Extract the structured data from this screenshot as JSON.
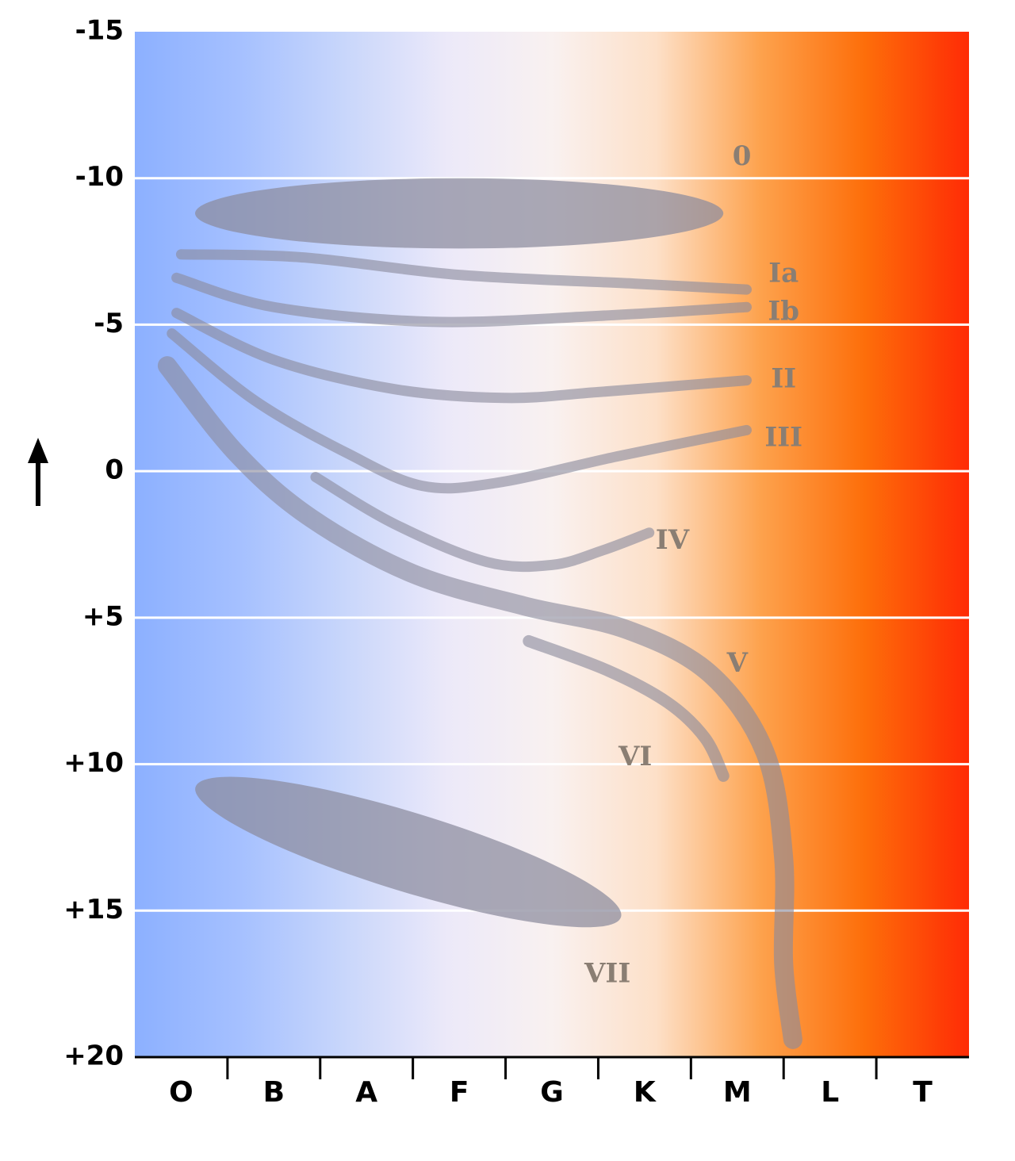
{
  "chart_data": {
    "type": "scatter",
    "title": "",
    "xlabel": "",
    "ylabel": "",
    "y_axis_arrow": "up-arrow-icon",
    "x_categories": [
      "O",
      "B",
      "A",
      "F",
      "G",
      "K",
      "M",
      "L",
      "T"
    ],
    "y_ticks": [
      -15,
      -10,
      -5,
      0,
      5,
      10,
      15,
      20
    ],
    "y_tick_labels": [
      "-15",
      "-10",
      "-5",
      "0",
      "+5",
      "+10",
      "+15",
      "+20"
    ],
    "ylim": [
      -15,
      20
    ],
    "y_inverted": true,
    "grid": "horizontal",
    "background_gradient": [
      "#8cb0ff",
      "#a5c0ff",
      "#c8d6fb",
      "#ece9f9",
      "#f9f1f0",
      "#fde0c8",
      "#fda24d",
      "#fd6e0a",
      "#ff2b05"
    ],
    "region_color": "#8a8a9c",
    "label_color": "#8a7e73",
    "regions": [
      {
        "label": "0",
        "kind": "band",
        "center": [
          3.5,
          -8.8
        ],
        "rx": 2.85,
        "ry": 1.2,
        "angle": 0,
        "label_pos": [
          6.55,
          -10.7
        ]
      },
      {
        "label": "VII",
        "kind": "band",
        "center": [
          2.95,
          13.0
        ],
        "rx": 2.4,
        "ry": 1.35,
        "angle": 17,
        "label_pos": [
          5.1,
          17.2
        ]
      },
      {
        "label": "Ia",
        "kind": "curve",
        "width": 13,
        "points": [
          [
            0.5,
            -7.4
          ],
          [
            1.8,
            -7.3
          ],
          [
            3.5,
            -6.7
          ],
          [
            5.4,
            -6.4
          ],
          [
            6.6,
            -6.2
          ]
        ],
        "label_pos": [
          7.0,
          -6.7
        ]
      },
      {
        "label": "Ib",
        "kind": "curve",
        "width": 13,
        "points": [
          [
            0.45,
            -6.6
          ],
          [
            1.5,
            -5.6
          ],
          [
            3.2,
            -5.1
          ],
          [
            5.0,
            -5.3
          ],
          [
            6.6,
            -5.6
          ]
        ],
        "label_pos": [
          7.0,
          -5.4
        ]
      },
      {
        "label": "II",
        "kind": "curve",
        "width": 13,
        "points": [
          [
            0.45,
            -5.4
          ],
          [
            1.5,
            -3.8
          ],
          [
            2.8,
            -2.8
          ],
          [
            4.0,
            -2.5
          ],
          [
            5.0,
            -2.7
          ],
          [
            6.6,
            -3.1
          ]
        ],
        "label_pos": [
          7.0,
          -3.1
        ]
      },
      {
        "label": "III",
        "kind": "curve",
        "width": 13,
        "points": [
          [
            0.4,
            -4.7
          ],
          [
            1.3,
            -2.4
          ],
          [
            2.3,
            -0.6
          ],
          [
            3.1,
            0.5
          ],
          [
            3.9,
            0.4
          ],
          [
            5.2,
            -0.5
          ],
          [
            6.6,
            -1.4
          ]
        ],
        "label_pos": [
          7.0,
          -1.1
        ]
      },
      {
        "label": "IV",
        "kind": "curve",
        "width": 13,
        "points": [
          [
            1.95,
            0.2
          ],
          [
            2.8,
            1.8
          ],
          [
            3.8,
            3.1
          ],
          [
            4.5,
            3.2
          ],
          [
            5.05,
            2.7
          ],
          [
            5.55,
            2.1
          ]
        ],
        "label_pos": [
          5.8,
          2.4
        ]
      },
      {
        "label": "V",
        "kind": "curve",
        "width": 24,
        "points": [
          [
            0.35,
            -3.6
          ],
          [
            1.1,
            -0.6
          ],
          [
            1.9,
            1.6
          ],
          [
            3.0,
            3.5
          ],
          [
            4.2,
            4.6
          ],
          [
            5.3,
            5.4
          ],
          [
            6.2,
            6.9
          ],
          [
            6.8,
            9.6
          ],
          [
            7.0,
            13.2
          ],
          [
            7.0,
            16.8
          ],
          [
            7.1,
            19.4
          ]
        ],
        "label_pos": [
          6.5,
          6.6
        ]
      },
      {
        "label": "VI",
        "kind": "curve",
        "width": 15,
        "points": [
          [
            4.25,
            5.8
          ],
          [
            5.1,
            6.8
          ],
          [
            5.75,
            7.9
          ],
          [
            6.15,
            9.1
          ],
          [
            6.35,
            10.4
          ]
        ],
        "label_pos": [
          5.4,
          9.8
        ]
      }
    ]
  }
}
